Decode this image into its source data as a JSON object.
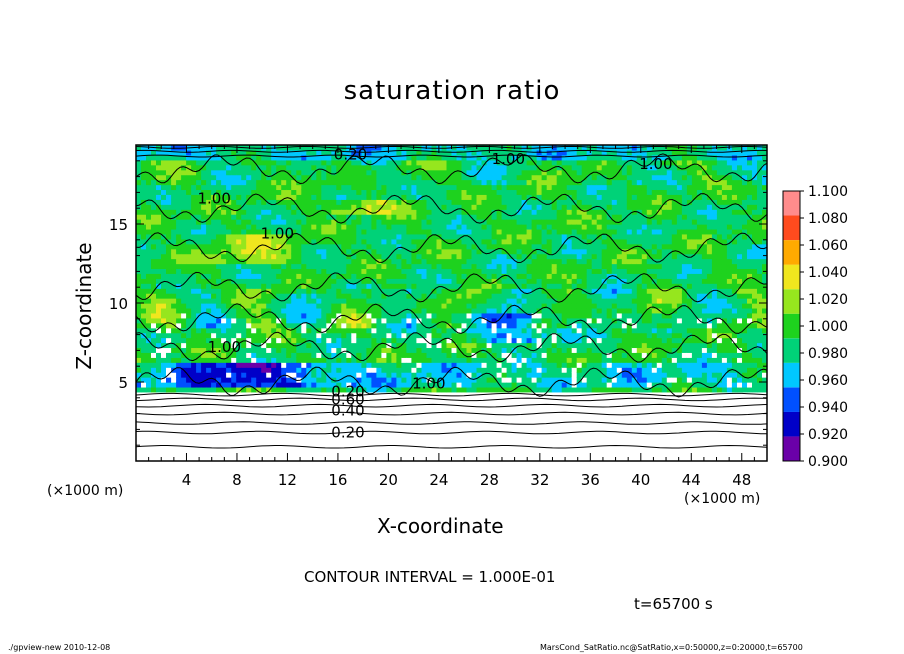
{
  "chart_data": {
    "type": "heatmap",
    "title": "saturation ratio",
    "xlabel": "X-coordinate",
    "ylabel": "Z-coordinate",
    "x_unit_label": "(×1000 m)",
    "xlim": [
      0,
      50
    ],
    "ylim": [
      0,
      20
    ],
    "x_ticks": [
      4,
      8,
      12,
      16,
      20,
      24,
      28,
      32,
      36,
      40,
      44,
      48
    ],
    "y_ticks": [
      5,
      10,
      15
    ],
    "colorbar_levels": [
      0.9,
      0.92,
      0.94,
      0.96,
      0.98,
      1.0,
      1.02,
      1.04,
      1.06,
      1.08,
      1.1
    ],
    "colorbar_labels": [
      "0.900",
      "0.920",
      "0.940",
      "0.960",
      "0.980",
      "1.000",
      "1.020",
      "1.040",
      "1.060",
      "1.080",
      "1.100"
    ],
    "colorbar_colors": [
      "#6a00a8",
      "#0000c8",
      "#0050ff",
      "#00c8ff",
      "#00d278",
      "#1ed21e",
      "#96e61e",
      "#f0e61e",
      "#ffaa00",
      "#ff4b1e",
      "#ff8c8c"
    ],
    "contour_labels": [
      {
        "text": "0.20",
        "x": 17.0,
        "y": 19.4
      },
      {
        "text": "1.00",
        "x": 29.5,
        "y": 19.1
      },
      {
        "text": "1.00",
        "x": 41.2,
        "y": 18.8
      },
      {
        "text": "1.00",
        "x": 6.2,
        "y": 16.6
      },
      {
        "text": "1.00",
        "x": 11.2,
        "y": 14.4
      },
      {
        "text": "1.00",
        "x": 7.0,
        "y": 7.2
      },
      {
        "text": "1.00",
        "x": 23.2,
        "y": 4.9
      },
      {
        "text": "0.20",
        "x": 16.8,
        "y": 4.4
      },
      {
        "text": "0.60",
        "x": 16.8,
        "y": 3.9
      },
      {
        "text": "0.40",
        "x": 16.8,
        "y": 3.2
      },
      {
        "text": "0.20",
        "x": 16.8,
        "y": 1.8
      }
    ],
    "contour_interval": "CONTOUR INTERVAL = 1.000E-01",
    "time": "t=65700 s"
  },
  "footer": {
    "left": "./gpview-new  2010-12-08",
    "right": "MarsCond_SatRatio.nc@SatRatio,x=0:50000,z=0:20000,t=65700"
  }
}
